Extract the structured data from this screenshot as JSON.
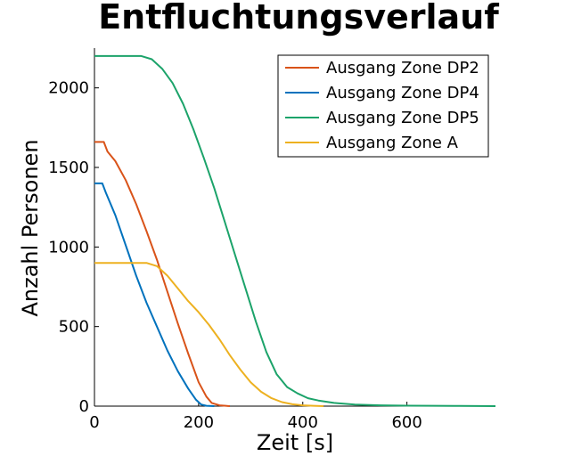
{
  "chart_data": {
    "type": "line",
    "title": "Entfluchtungsverlauf",
    "xlabel": "Zeit [s]",
    "ylabel": "Anzahl Personen",
    "xlim": [
      0,
      770
    ],
    "ylim": [
      0,
      2250
    ],
    "xticks": [
      0,
      200,
      400,
      600
    ],
    "yticks": [
      0,
      500,
      1000,
      1500,
      2000
    ],
    "grid": false,
    "legend_position": "top-right",
    "series": [
      {
        "name": "Ausgang Zone DP2",
        "color": "#d95319",
        "points": [
          [
            0,
            1660
          ],
          [
            18,
            1660
          ],
          [
            25,
            1600
          ],
          [
            40,
            1540
          ],
          [
            60,
            1420
          ],
          [
            80,
            1270
          ],
          [
            100,
            1100
          ],
          [
            120,
            920
          ],
          [
            140,
            720
          ],
          [
            160,
            520
          ],
          [
            180,
            330
          ],
          [
            200,
            150
          ],
          [
            215,
            60
          ],
          [
            225,
            20
          ],
          [
            240,
            5
          ],
          [
            260,
            0
          ]
        ]
      },
      {
        "name": "Ausgang Zone DP4",
        "color": "#0072bd",
        "points": [
          [
            0,
            1400
          ],
          [
            15,
            1400
          ],
          [
            22,
            1340
          ],
          [
            40,
            1200
          ],
          [
            60,
            1010
          ],
          [
            80,
            820
          ],
          [
            100,
            650
          ],
          [
            120,
            500
          ],
          [
            140,
            350
          ],
          [
            160,
            220
          ],
          [
            180,
            110
          ],
          [
            195,
            40
          ],
          [
            205,
            10
          ],
          [
            215,
            2
          ],
          [
            230,
            0
          ]
        ]
      },
      {
        "name": "Ausgang Zone DP5",
        "color": "#1ca36a",
        "points": [
          [
            0,
            2200
          ],
          [
            90,
            2200
          ],
          [
            110,
            2180
          ],
          [
            130,
            2120
          ],
          [
            150,
            2030
          ],
          [
            170,
            1900
          ],
          [
            190,
            1740
          ],
          [
            210,
            1560
          ],
          [
            230,
            1370
          ],
          [
            250,
            1160
          ],
          [
            270,
            950
          ],
          [
            290,
            740
          ],
          [
            310,
            530
          ],
          [
            330,
            340
          ],
          [
            350,
            200
          ],
          [
            370,
            120
          ],
          [
            390,
            80
          ],
          [
            410,
            50
          ],
          [
            430,
            35
          ],
          [
            460,
            20
          ],
          [
            500,
            10
          ],
          [
            550,
            5
          ],
          [
            600,
            3
          ],
          [
            650,
            2
          ],
          [
            700,
            1
          ],
          [
            770,
            0
          ]
        ]
      },
      {
        "name": "Ausgang Zone A",
        "color": "#edb120",
        "points": [
          [
            0,
            900
          ],
          [
            80,
            900
          ],
          [
            100,
            900
          ],
          [
            120,
            880
          ],
          [
            140,
            820
          ],
          [
            160,
            740
          ],
          [
            180,
            660
          ],
          [
            200,
            590
          ],
          [
            220,
            510
          ],
          [
            240,
            420
          ],
          [
            260,
            320
          ],
          [
            280,
            230
          ],
          [
            300,
            150
          ],
          [
            320,
            90
          ],
          [
            340,
            50
          ],
          [
            360,
            25
          ],
          [
            380,
            12
          ],
          [
            400,
            5
          ],
          [
            420,
            2
          ],
          [
            440,
            0
          ]
        ]
      }
    ]
  }
}
